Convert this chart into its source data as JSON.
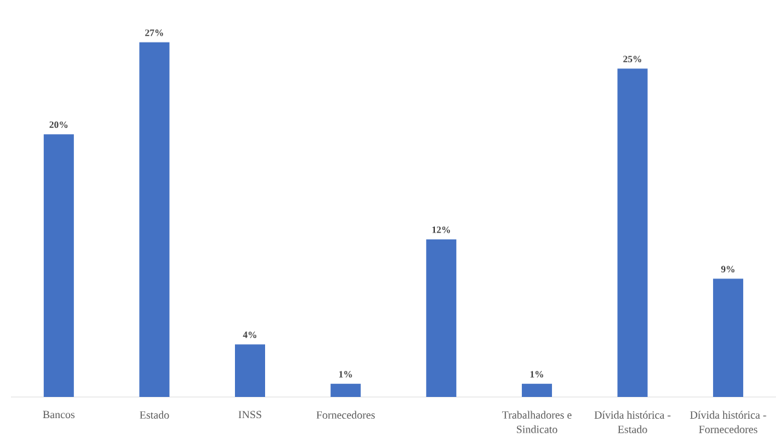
{
  "chart_data": {
    "type": "bar",
    "categories": [
      "Bancos",
      "Estado",
      "INSS",
      "Fornecedores",
      null,
      "Trabalhadores e Sindicato",
      "Dívida histórica - Estado",
      "Dívida histórica - Fornecedores"
    ],
    "values": [
      20,
      27,
      4,
      1,
      12,
      1,
      25,
      9
    ],
    "value_labels": [
      "20%",
      "27%",
      "4%",
      "1%",
      "12%",
      "1%",
      "25%",
      "9%"
    ],
    "color": "#4472c4"
  }
}
